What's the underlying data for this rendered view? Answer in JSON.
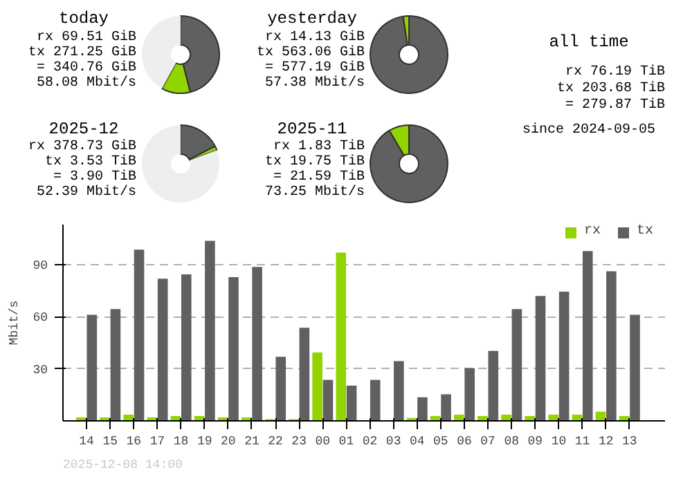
{
  "chart_data": [
    {
      "type": "donut",
      "title": "today",
      "categories": [
        null,
        null,
        null
      ],
      "values": [
        46,
        12,
        42
      ],
      "colors": [
        "#606060",
        "#92d400",
        "#eeeeee"
      ],
      "annotations": [
        "rx 69.51 GiB",
        "tx 271.25 GiB",
        "= 340.76 GiB",
        "58.08 Mbit/s"
      ]
    },
    {
      "type": "donut",
      "title": "yesterday",
      "categories": [
        null,
        null,
        null
      ],
      "values": [
        97.6,
        2.4,
        0
      ],
      "colors": [
        "#606060",
        "#92d400",
        "#eeeeee"
      ],
      "annotations": [
        "rx 14.13 GiB",
        "tx 563.06 GiB",
        "= 577.19 GiB",
        "57.38 Mbit/s"
      ]
    },
    {
      "type": "other",
      "title": "all time",
      "annotations": [
        "rx 76.19 TiB",
        "tx 203.68 TiB",
        "= 279.87 TiB",
        "since 2024-09-05"
      ]
    },
    {
      "type": "donut",
      "title": "2025-12",
      "categories": [
        null,
        null,
        null
      ],
      "values": [
        17.5,
        1.8,
        80.7
      ],
      "colors": [
        "#606060",
        "#92d400",
        "#eeeeee"
      ],
      "annotations": [
        "rx 378.73 GiB",
        "tx 3.53 TiB",
        "= 3.90 TiB",
        "52.39 Mbit/s"
      ]
    },
    {
      "type": "donut",
      "title": "2025-11",
      "categories": [
        null,
        null,
        null
      ],
      "values": [
        91.5,
        8.5,
        0
      ],
      "colors": [
        "#606060",
        "#92d400",
        "#eeeeee"
      ],
      "annotations": [
        "rx 1.83 TiB",
        "tx 19.75 TiB",
        "= 21.59 TiB",
        "73.25 Mbit/s"
      ]
    },
    {
      "type": "bar",
      "ylabel": "Mbit/s",
      "legend": "top right",
      "grid": "y",
      "categories": [
        "14",
        "15",
        "16",
        "17",
        "18",
        "19",
        "20",
        "21",
        "22",
        "23",
        "00",
        "01",
        "02",
        "03",
        "04",
        "05",
        "06",
        "07",
        "08",
        "09",
        "10",
        "11",
        "12",
        "13"
      ],
      "series": [
        {
          "name": "rx",
          "color": "#92d400",
          "values": [
            2,
            2,
            3.6,
            2,
            2.8,
            2.8,
            2,
            2,
            1,
            1,
            39.4,
            96.9,
            0,
            0,
            1.7,
            2.8,
            3.6,
            2.8,
            3.6,
            2.8,
            3.6,
            3.6,
            5.3,
            2.8
          ]
        },
        {
          "name": "tx",
          "color": "#606060",
          "values": [
            61.1,
            64.4,
            98.6,
            81.9,
            84.4,
            103.6,
            82.8,
            88.6,
            36.9,
            53.6,
            23.6,
            20.3,
            23.6,
            34.4,
            13.6,
            15.3,
            30.3,
            40.3,
            64.4,
            71.9,
            74.4,
            97.8,
            86.1,
            61.1
          ]
        }
      ],
      "ylim": [
        0,
        113
      ],
      "yticks": [
        30,
        60,
        90
      ],
      "annotations": [
        "2025-12-08 14:00"
      ]
    }
  ]
}
